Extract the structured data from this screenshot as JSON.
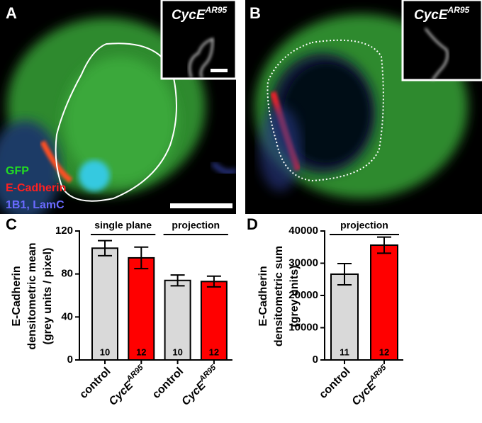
{
  "images": [
    {
      "label": "A",
      "inset_label": {
        "base": "CycE",
        "sup": "AR95"
      },
      "channels": [
        "GFP",
        "E-Cadherin",
        "1B1, LamC"
      ]
    },
    {
      "label": "B",
      "inset_label": {
        "base": "CycE",
        "sup": "AR95"
      }
    }
  ],
  "chart_data": [
    {
      "type": "bar",
      "panel_label": "C",
      "ylabel": [
        "E-Cadherin",
        "densitometric mean",
        "(grey units / pixel)"
      ],
      "groups": [
        "single plane",
        "projection"
      ],
      "categories": [
        "control",
        "CycE",
        "control",
        "CycE"
      ],
      "category_superscripts": [
        null,
        "AR95",
        null,
        "AR95"
      ],
      "values": [
        104,
        95,
        74,
        73
      ],
      "errors": [
        7,
        10,
        5,
        5
      ],
      "n": [
        10,
        12,
        10,
        12
      ],
      "colors": [
        "#d9d9d9",
        "#ff0000",
        "#d9d9d9",
        "#ff0000"
      ],
      "ylim": [
        0,
        120
      ],
      "yticks": [
        0,
        40,
        80,
        120
      ]
    },
    {
      "type": "bar",
      "panel_label": "D",
      "ylabel": [
        "E-Cadherin",
        "densitometric sum",
        "(grey units)"
      ],
      "groups": [
        "projection"
      ],
      "categories": [
        "control",
        "CycE"
      ],
      "category_superscripts": [
        null,
        "AR95"
      ],
      "values": [
        26600,
        35600
      ],
      "errors": [
        3300,
        2500
      ],
      "n": [
        11,
        12
      ],
      "colors": [
        "#d9d9d9",
        "#ff0000"
      ],
      "ylim": [
        0,
        40000
      ],
      "yticks": [
        0,
        10000,
        20000,
        30000,
        40000
      ]
    }
  ]
}
